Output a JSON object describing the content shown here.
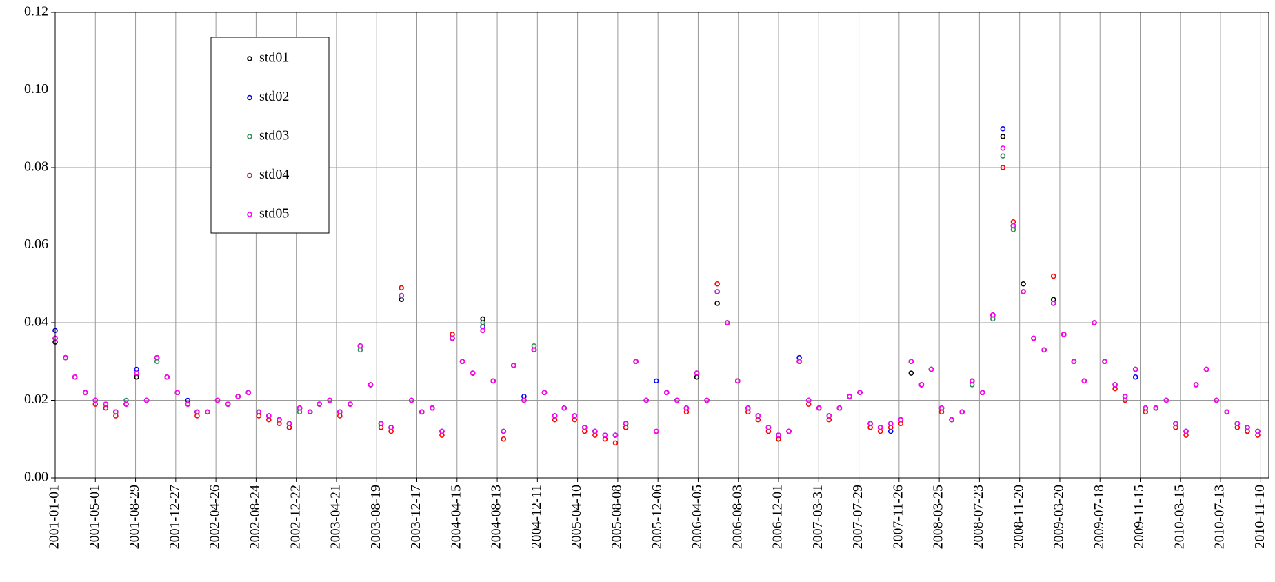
{
  "chart_data": {
    "type": "scatter",
    "x": [
      "2001-01-01",
      "2001-02-01",
      "2001-03-01",
      "2001-04-01",
      "2001-05-01",
      "2001-06-01",
      "2001-07-01",
      "2001-08-01",
      "2001-09-01",
      "2001-10-01",
      "2001-11-01",
      "2001-12-01",
      "2002-01-01",
      "2002-02-01",
      "2002-03-01",
      "2002-04-01",
      "2002-05-01",
      "2002-06-01",
      "2002-07-01",
      "2002-08-01",
      "2002-09-01",
      "2002-10-01",
      "2002-11-01",
      "2002-12-01",
      "2003-01-01",
      "2003-02-01",
      "2003-03-01",
      "2003-04-01",
      "2003-05-01",
      "2003-06-01",
      "2003-07-01",
      "2003-08-01",
      "2003-09-01",
      "2003-10-01",
      "2003-11-01",
      "2003-12-01",
      "2004-01-01",
      "2004-02-01",
      "2004-03-01",
      "2004-04-01",
      "2004-05-01",
      "2004-06-01",
      "2004-07-01",
      "2004-08-01",
      "2004-09-01",
      "2004-10-01",
      "2004-11-01",
      "2004-12-01",
      "2005-01-01",
      "2005-02-01",
      "2005-03-01",
      "2005-04-01",
      "2005-05-01",
      "2005-06-01",
      "2005-07-01",
      "2005-08-01",
      "2005-09-01",
      "2005-10-01",
      "2005-11-01",
      "2005-12-01",
      "2006-01-01",
      "2006-02-01",
      "2006-03-01",
      "2006-04-01",
      "2006-05-01",
      "2006-06-01",
      "2006-07-01",
      "2006-08-01",
      "2006-09-01",
      "2006-10-01",
      "2006-11-01",
      "2006-12-01",
      "2007-01-01",
      "2007-02-01",
      "2007-03-01",
      "2007-04-01",
      "2007-05-01",
      "2007-06-01",
      "2007-07-01",
      "2007-08-01",
      "2007-09-01",
      "2007-10-01",
      "2007-11-01",
      "2007-12-01",
      "2008-01-01",
      "2008-02-01",
      "2008-03-01",
      "2008-04-01",
      "2008-05-01",
      "2008-06-01",
      "2008-07-01",
      "2008-08-01",
      "2008-09-01",
      "2008-10-01",
      "2008-11-01",
      "2008-12-01",
      "2009-01-01",
      "2009-02-01",
      "2009-03-01",
      "2009-04-01",
      "2009-05-01",
      "2009-06-01",
      "2009-07-01",
      "2009-08-01",
      "2009-09-01",
      "2009-10-01",
      "2009-11-01",
      "2009-12-01",
      "2010-01-01",
      "2010-02-01",
      "2010-03-01",
      "2010-04-01",
      "2010-05-01",
      "2010-06-01",
      "2010-07-01",
      "2010-08-01",
      "2010-09-01",
      "2010-10-01",
      "2010-11-01"
    ],
    "series": [
      {
        "name": "std01",
        "color": "#000000",
        "values": [
          0.035,
          0.031,
          0.026,
          0.022,
          0.02,
          0.019,
          0.017,
          0.019,
          0.026,
          0.02,
          0.031,
          0.026,
          0.022,
          0.019,
          0.017,
          0.017,
          0.02,
          0.019,
          0.021,
          0.022,
          0.017,
          0.016,
          0.015,
          0.014,
          0.018,
          0.017,
          0.019,
          0.02,
          0.017,
          0.019,
          0.034,
          0.024,
          0.014,
          0.013,
          0.046,
          0.02,
          0.017,
          0.018,
          0.012,
          0.036,
          0.03,
          0.027,
          0.041,
          0.025,
          0.012,
          0.029,
          0.02,
          0.033,
          0.022,
          0.016,
          0.018,
          0.016,
          0.013,
          0.012,
          0.011,
          0.011,
          0.014,
          0.03,
          0.02,
          0.012,
          0.022,
          0.02,
          0.018,
          0.026,
          0.02,
          0.045,
          0.04,
          0.025,
          0.018,
          0.016,
          0.013,
          0.011,
          0.012,
          0.03,
          0.02,
          0.018,
          0.016,
          0.018,
          0.021,
          0.022,
          0.014,
          0.013,
          0.014,
          0.015,
          0.027,
          0.024,
          0.028,
          0.018,
          0.015,
          0.017,
          0.025,
          0.022,
          0.042,
          0.088,
          0.065,
          0.05,
          0.036,
          0.033,
          0.046,
          0.037,
          0.03,
          0.025,
          0.04,
          0.03,
          0.024,
          0.021,
          0.028,
          0.018,
          0.018,
          0.02,
          0.014,
          0.012,
          0.024,
          0.028,
          0.02,
          0.017,
          0.014,
          0.013,
          0.012
        ]
      },
      {
        "name": "std02",
        "color": "#0000ff",
        "values": [
          0.038,
          0.031,
          0.026,
          0.022,
          0.02,
          0.019,
          0.017,
          0.019,
          0.028,
          0.02,
          0.031,
          0.026,
          0.022,
          0.02,
          0.017,
          0.017,
          0.02,
          0.019,
          0.021,
          0.022,
          0.017,
          0.016,
          0.015,
          0.013,
          0.018,
          0.017,
          0.019,
          0.02,
          0.017,
          0.019,
          0.034,
          0.024,
          0.014,
          0.013,
          0.047,
          0.02,
          0.017,
          0.018,
          0.012,
          0.036,
          0.03,
          0.027,
          0.039,
          0.025,
          0.012,
          0.029,
          0.021,
          0.033,
          0.022,
          0.016,
          0.018,
          0.016,
          0.013,
          0.012,
          0.011,
          0.011,
          0.014,
          0.03,
          0.02,
          0.025,
          0.022,
          0.02,
          0.018,
          0.027,
          0.02,
          0.048,
          0.04,
          0.025,
          0.018,
          0.016,
          0.013,
          0.011,
          0.012,
          0.031,
          0.02,
          0.018,
          0.016,
          0.018,
          0.021,
          0.022,
          0.014,
          0.013,
          0.012,
          0.015,
          0.03,
          0.024,
          0.028,
          0.018,
          0.015,
          0.017,
          0.025,
          0.022,
          0.042,
          0.09,
          0.065,
          0.048,
          0.036,
          0.033,
          0.045,
          0.037,
          0.03,
          0.025,
          0.04,
          0.03,
          0.024,
          0.021,
          0.026,
          0.018,
          0.018,
          0.02,
          0.014,
          0.012,
          0.024,
          0.028,
          0.02,
          0.017,
          0.014,
          0.013,
          0.012
        ]
      },
      {
        "name": "std03",
        "color": "#2e8b57",
        "values": [
          0.036,
          0.031,
          0.026,
          0.022,
          0.02,
          0.019,
          0.017,
          0.02,
          0.027,
          0.02,
          0.03,
          0.026,
          0.022,
          0.019,
          0.017,
          0.017,
          0.02,
          0.019,
          0.021,
          0.022,
          0.017,
          0.016,
          0.015,
          0.014,
          0.017,
          0.017,
          0.019,
          0.02,
          0.017,
          0.019,
          0.033,
          0.024,
          0.014,
          0.013,
          0.047,
          0.02,
          0.017,
          0.018,
          0.012,
          0.036,
          0.03,
          0.027,
          0.04,
          0.025,
          0.012,
          0.029,
          0.02,
          0.034,
          0.022,
          0.016,
          0.018,
          0.016,
          0.013,
          0.012,
          0.011,
          0.011,
          0.014,
          0.03,
          0.02,
          0.012,
          0.022,
          0.02,
          0.018,
          0.027,
          0.02,
          0.048,
          0.04,
          0.025,
          0.018,
          0.016,
          0.013,
          0.01,
          0.012,
          0.03,
          0.02,
          0.018,
          0.016,
          0.018,
          0.021,
          0.022,
          0.014,
          0.013,
          0.014,
          0.015,
          0.03,
          0.024,
          0.028,
          0.018,
          0.015,
          0.017,
          0.024,
          0.022,
          0.041,
          0.083,
          0.064,
          0.048,
          0.036,
          0.033,
          0.045,
          0.037,
          0.03,
          0.025,
          0.04,
          0.03,
          0.024,
          0.021,
          0.028,
          0.018,
          0.018,
          0.02,
          0.014,
          0.012,
          0.024,
          0.028,
          0.02,
          0.017,
          0.014,
          0.012,
          0.012
        ]
      },
      {
        "name": "std04",
        "color": "#ff0000",
        "values": [
          0.036,
          0.031,
          0.026,
          0.022,
          0.019,
          0.018,
          0.016,
          0.019,
          0.027,
          0.02,
          0.031,
          0.026,
          0.022,
          0.019,
          0.016,
          0.017,
          0.02,
          0.019,
          0.021,
          0.022,
          0.016,
          0.015,
          0.014,
          0.013,
          0.018,
          0.017,
          0.019,
          0.02,
          0.016,
          0.019,
          0.034,
          0.024,
          0.013,
          0.012,
          0.049,
          0.02,
          0.017,
          0.018,
          0.011,
          0.037,
          0.03,
          0.027,
          0.038,
          0.025,
          0.01,
          0.029,
          0.02,
          0.033,
          0.022,
          0.015,
          0.018,
          0.015,
          0.012,
          0.011,
          0.01,
          0.009,
          0.013,
          0.03,
          0.02,
          0.012,
          0.022,
          0.02,
          0.017,
          0.027,
          0.02,
          0.05,
          0.04,
          0.025,
          0.017,
          0.015,
          0.012,
          0.01,
          0.012,
          0.03,
          0.019,
          0.018,
          0.015,
          0.018,
          0.021,
          0.022,
          0.013,
          0.012,
          0.013,
          0.014,
          0.03,
          0.024,
          0.028,
          0.017,
          0.015,
          0.017,
          0.025,
          0.022,
          0.042,
          0.08,
          0.066,
          0.048,
          0.036,
          0.033,
          0.052,
          0.037,
          0.03,
          0.025,
          0.04,
          0.03,
          0.023,
          0.02,
          0.028,
          0.017,
          0.018,
          0.02,
          0.013,
          0.011,
          0.024,
          0.028,
          0.02,
          0.017,
          0.013,
          0.012,
          0.011
        ]
      },
      {
        "name": "std05",
        "color": "#ff00ff",
        "values": [
          0.036,
          0.031,
          0.026,
          0.022,
          0.02,
          0.019,
          0.017,
          0.019,
          0.027,
          0.02,
          0.031,
          0.026,
          0.022,
          0.019,
          0.017,
          0.017,
          0.02,
          0.019,
          0.021,
          0.022,
          0.017,
          0.016,
          0.015,
          0.014,
          0.018,
          0.017,
          0.019,
          0.02,
          0.017,
          0.019,
          0.034,
          0.024,
          0.014,
          0.013,
          0.047,
          0.02,
          0.017,
          0.018,
          0.012,
          0.036,
          0.03,
          0.027,
          0.038,
          0.025,
          0.012,
          0.029,
          0.02,
          0.033,
          0.022,
          0.016,
          0.018,
          0.016,
          0.013,
          0.012,
          0.011,
          0.011,
          0.014,
          0.03,
          0.02,
          0.012,
          0.022,
          0.02,
          0.018,
          0.027,
          0.02,
          0.048,
          0.04,
          0.025,
          0.018,
          0.016,
          0.013,
          0.011,
          0.012,
          0.03,
          0.02,
          0.018,
          0.016,
          0.018,
          0.021,
          0.022,
          0.014,
          0.013,
          0.014,
          0.015,
          0.03,
          0.024,
          0.028,
          0.018,
          0.015,
          0.017,
          0.025,
          0.022,
          0.042,
          0.085,
          0.065,
          0.048,
          0.036,
          0.033,
          0.045,
          0.037,
          0.03,
          0.025,
          0.04,
          0.03,
          0.024,
          0.021,
          0.028,
          0.018,
          0.018,
          0.02,
          0.014,
          0.012,
          0.024,
          0.028,
          0.02,
          0.017,
          0.014,
          0.013,
          0.012
        ]
      }
    ],
    "xlim": [
      "2001-01-01",
      "2010-12-04"
    ],
    "xticks": [
      "2001-01-01",
      "2001-05-01",
      "2001-08-29",
      "2001-12-27",
      "2002-04-26",
      "2002-08-24",
      "2002-12-22",
      "2003-04-21",
      "2003-08-19",
      "2003-12-17",
      "2004-04-15",
      "2004-08-13",
      "2004-12-11",
      "2005-04-10",
      "2005-08-08",
      "2005-12-06",
      "2006-04-05",
      "2006-08-03",
      "2006-12-01",
      "2007-03-31",
      "2007-07-29",
      "2007-11-26",
      "2008-03-25",
      "2008-07-23",
      "2008-11-20",
      "2009-03-20",
      "2009-07-18",
      "2009-11-15",
      "2010-03-15",
      "2010-07-13",
      "2010-11-10"
    ],
    "ylim": [
      0,
      0.12
    ],
    "yticks": [
      {
        "value": 0,
        "label": "0.00"
      },
      {
        "value": 0.02,
        "label": "0.02"
      },
      {
        "value": 0.04,
        "label": "0.04"
      },
      {
        "value": 0.06,
        "label": "0.06"
      },
      {
        "value": 0.08,
        "label": "0.08"
      },
      {
        "value": 0.1,
        "label": "0.10"
      },
      {
        "value": 0.12,
        "label": "0.12"
      }
    ],
    "grid": true
  }
}
